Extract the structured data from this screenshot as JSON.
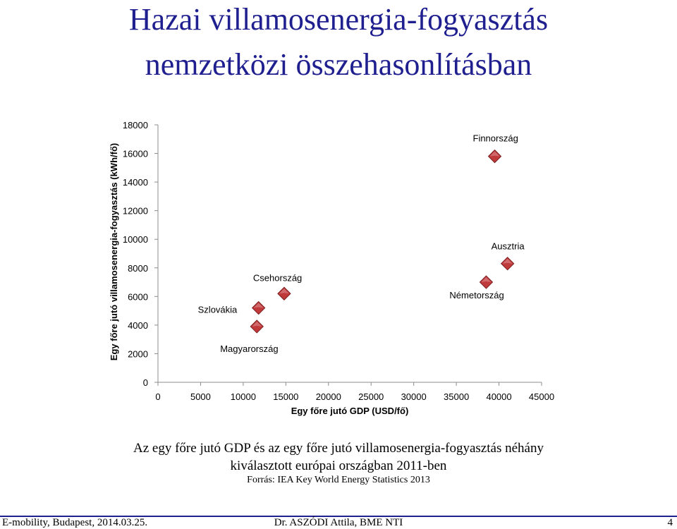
{
  "slide": {
    "title_line1": "Hazai villamosenergia-fogyasztás",
    "title_line2": "nemzetközi összehasonlításban",
    "caption_line1": "Az egy főre jutó GDP és az egy főre jutó villamosenergia-fogyasztás néhány",
    "caption_line2": "kiválasztott európai országban 2011-ben",
    "source": "Forrás: IEA Key World Energy Statistics 2013",
    "footer_left": "E-mobility, Budapest, 2014.03.25.",
    "footer_center": "Dr. ASZÓDI Attila, BME NTI",
    "page_number": "4"
  },
  "chart_data": {
    "type": "scatter",
    "xlabel": "Egy főre jutó GDP (USD/fő)",
    "ylabel": "Egy főre jutó villamosenergia-fogyasztás (kWh/fő)",
    "xlim": [
      0,
      45000
    ],
    "ylim": [
      0,
      18000
    ],
    "xticks": [
      "0",
      "5000",
      "10000",
      "15000",
      "20000",
      "25000",
      "30000",
      "35000",
      "40000",
      "45000"
    ],
    "yticks": [
      "0",
      "2000",
      "4000",
      "6000",
      "8000",
      "10000",
      "12000",
      "14000",
      "16000",
      "18000"
    ],
    "grid": false,
    "marker_color": "#c0393b",
    "points": [
      {
        "label": "Magyarország",
        "x": 11600,
        "y": 3900
      },
      {
        "label": "Szlovákia",
        "x": 11800,
        "y": 5200
      },
      {
        "label": "Csehország",
        "x": 14800,
        "y": 6200
      },
      {
        "label": "Németország",
        "x": 38500,
        "y": 7000
      },
      {
        "label": "Ausztria",
        "x": 41000,
        "y": 8300
      },
      {
        "label": "Finnország",
        "x": 39500,
        "y": 15800
      }
    ]
  }
}
